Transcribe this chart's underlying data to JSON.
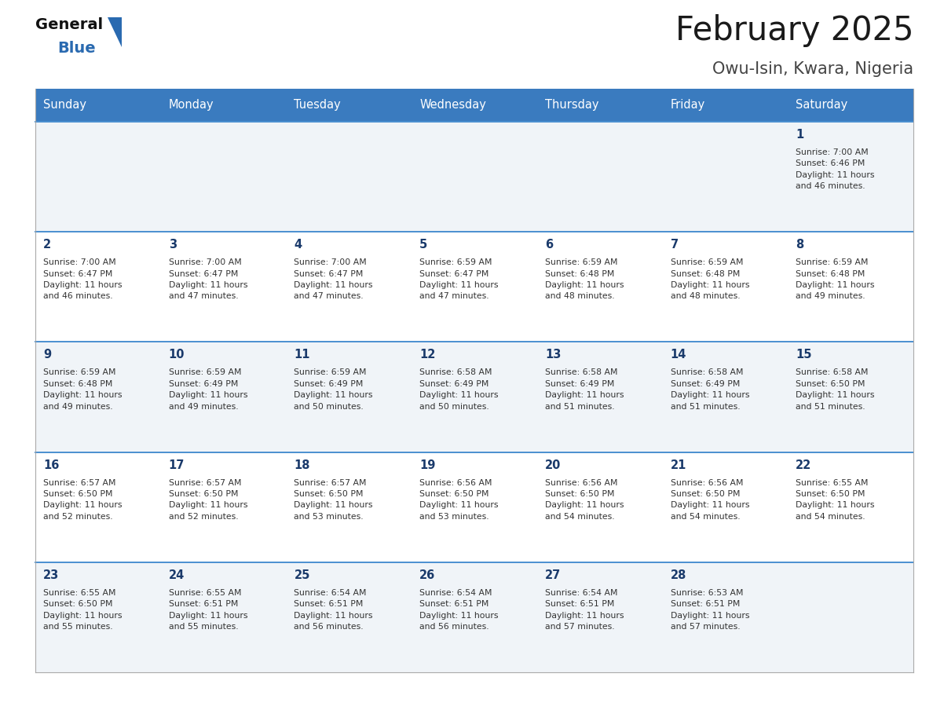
{
  "title": "February 2025",
  "subtitle": "Owu-Isin, Kwara, Nigeria",
  "header_color": "#3a7bbf",
  "header_text_color": "#ffffff",
  "day_names": [
    "Sunday",
    "Monday",
    "Tuesday",
    "Wednesday",
    "Thursday",
    "Friday",
    "Saturday"
  ],
  "cell_bg_even": "#f0f4f8",
  "cell_bg_odd": "#ffffff",
  "title_color": "#1a1a1a",
  "subtitle_color": "#444444",
  "day_num_color": "#1a3a6b",
  "info_color": "#333333",
  "border_color": "#3a7bbf",
  "row_border_color": "#4a8fd0",
  "outer_border_color": "#aaaaaa",
  "logo_general_color": "#111111",
  "logo_blue_color": "#2a6ab0",
  "fig_width": 11.88,
  "fig_height": 9.18,
  "weeks": [
    [
      {
        "day": 0,
        "info": ""
      },
      {
        "day": 0,
        "info": ""
      },
      {
        "day": 0,
        "info": ""
      },
      {
        "day": 0,
        "info": ""
      },
      {
        "day": 0,
        "info": ""
      },
      {
        "day": 0,
        "info": ""
      },
      {
        "day": 1,
        "info": "Sunrise: 7:00 AM\nSunset: 6:46 PM\nDaylight: 11 hours\nand 46 minutes."
      }
    ],
    [
      {
        "day": 2,
        "info": "Sunrise: 7:00 AM\nSunset: 6:47 PM\nDaylight: 11 hours\nand 46 minutes."
      },
      {
        "day": 3,
        "info": "Sunrise: 7:00 AM\nSunset: 6:47 PM\nDaylight: 11 hours\nand 47 minutes."
      },
      {
        "day": 4,
        "info": "Sunrise: 7:00 AM\nSunset: 6:47 PM\nDaylight: 11 hours\nand 47 minutes."
      },
      {
        "day": 5,
        "info": "Sunrise: 6:59 AM\nSunset: 6:47 PM\nDaylight: 11 hours\nand 47 minutes."
      },
      {
        "day": 6,
        "info": "Sunrise: 6:59 AM\nSunset: 6:48 PM\nDaylight: 11 hours\nand 48 minutes."
      },
      {
        "day": 7,
        "info": "Sunrise: 6:59 AM\nSunset: 6:48 PM\nDaylight: 11 hours\nand 48 minutes."
      },
      {
        "day": 8,
        "info": "Sunrise: 6:59 AM\nSunset: 6:48 PM\nDaylight: 11 hours\nand 49 minutes."
      }
    ],
    [
      {
        "day": 9,
        "info": "Sunrise: 6:59 AM\nSunset: 6:48 PM\nDaylight: 11 hours\nand 49 minutes."
      },
      {
        "day": 10,
        "info": "Sunrise: 6:59 AM\nSunset: 6:49 PM\nDaylight: 11 hours\nand 49 minutes."
      },
      {
        "day": 11,
        "info": "Sunrise: 6:59 AM\nSunset: 6:49 PM\nDaylight: 11 hours\nand 50 minutes."
      },
      {
        "day": 12,
        "info": "Sunrise: 6:58 AM\nSunset: 6:49 PM\nDaylight: 11 hours\nand 50 minutes."
      },
      {
        "day": 13,
        "info": "Sunrise: 6:58 AM\nSunset: 6:49 PM\nDaylight: 11 hours\nand 51 minutes."
      },
      {
        "day": 14,
        "info": "Sunrise: 6:58 AM\nSunset: 6:49 PM\nDaylight: 11 hours\nand 51 minutes."
      },
      {
        "day": 15,
        "info": "Sunrise: 6:58 AM\nSunset: 6:50 PM\nDaylight: 11 hours\nand 51 minutes."
      }
    ],
    [
      {
        "day": 16,
        "info": "Sunrise: 6:57 AM\nSunset: 6:50 PM\nDaylight: 11 hours\nand 52 minutes."
      },
      {
        "day": 17,
        "info": "Sunrise: 6:57 AM\nSunset: 6:50 PM\nDaylight: 11 hours\nand 52 minutes."
      },
      {
        "day": 18,
        "info": "Sunrise: 6:57 AM\nSunset: 6:50 PM\nDaylight: 11 hours\nand 53 minutes."
      },
      {
        "day": 19,
        "info": "Sunrise: 6:56 AM\nSunset: 6:50 PM\nDaylight: 11 hours\nand 53 minutes."
      },
      {
        "day": 20,
        "info": "Sunrise: 6:56 AM\nSunset: 6:50 PM\nDaylight: 11 hours\nand 54 minutes."
      },
      {
        "day": 21,
        "info": "Sunrise: 6:56 AM\nSunset: 6:50 PM\nDaylight: 11 hours\nand 54 minutes."
      },
      {
        "day": 22,
        "info": "Sunrise: 6:55 AM\nSunset: 6:50 PM\nDaylight: 11 hours\nand 54 minutes."
      }
    ],
    [
      {
        "day": 23,
        "info": "Sunrise: 6:55 AM\nSunset: 6:50 PM\nDaylight: 11 hours\nand 55 minutes."
      },
      {
        "day": 24,
        "info": "Sunrise: 6:55 AM\nSunset: 6:51 PM\nDaylight: 11 hours\nand 55 minutes."
      },
      {
        "day": 25,
        "info": "Sunrise: 6:54 AM\nSunset: 6:51 PM\nDaylight: 11 hours\nand 56 minutes."
      },
      {
        "day": 26,
        "info": "Sunrise: 6:54 AM\nSunset: 6:51 PM\nDaylight: 11 hours\nand 56 minutes."
      },
      {
        "day": 27,
        "info": "Sunrise: 6:54 AM\nSunset: 6:51 PM\nDaylight: 11 hours\nand 57 minutes."
      },
      {
        "day": 28,
        "info": "Sunrise: 6:53 AM\nSunset: 6:51 PM\nDaylight: 11 hours\nand 57 minutes."
      },
      {
        "day": 0,
        "info": ""
      }
    ]
  ]
}
